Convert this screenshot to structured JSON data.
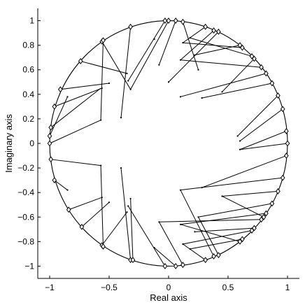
{
  "chart_data": {
    "type": "scatter",
    "title": "",
    "xlabel": "Real axis",
    "ylabel": "Imaginary axis",
    "xlim": [
      -1.1,
      1.1
    ],
    "ylim": [
      -1.1,
      1.1
    ],
    "xticks": [
      -1,
      -0.5,
      0,
      0.5,
      1
    ],
    "yticks": [
      -1,
      -0.8,
      -0.6,
      -0.4,
      -0.2,
      0,
      0.2,
      0.4,
      0.6,
      0.8,
      1
    ],
    "xtick_labels": [
      "−1",
      "−0.5",
      "0",
      "0.5",
      "1"
    ],
    "ytick_labels": [
      "−1",
      "−0.8",
      "−0.6",
      "−0.4",
      "−0.2",
      "0",
      "0.2",
      "0.4",
      "0.6",
      "0.8",
      "1"
    ],
    "grid": false,
    "unit_circle": true,
    "series": [
      {
        "marker": "dot",
        "points": [
          [
            -0.57,
            0.19
          ],
          [
            -0.4,
            0.21
          ],
          [
            -0.57,
            -0.18
          ],
          [
            -0.4,
            -0.2
          ],
          [
            -0.85,
            0.38
          ],
          [
            -0.56,
            0.45
          ],
          [
            -0.5,
            0.49
          ],
          [
            -0.35,
            0.57
          ],
          [
            -0.32,
            0.44
          ],
          [
            -0.34,
            0.51
          ],
          [
            0.0,
            0.5
          ],
          [
            0.1,
            0.38
          ],
          [
            0.28,
            0.37
          ],
          [
            0.1,
            0.68
          ],
          [
            -0.08,
            0.64
          ],
          [
            0.25,
            0.6
          ],
          [
            0.45,
            0.42
          ],
          [
            0.58,
            0.06
          ],
          [
            0.6,
            0.02
          ],
          [
            0.6,
            -0.05
          ],
          [
            0.1,
            -0.38
          ],
          [
            0.28,
            -0.36
          ],
          [
            0.45,
            -0.43
          ],
          [
            0.1,
            -0.66
          ],
          [
            -0.08,
            -0.64
          ],
          [
            0.25,
            -0.6
          ],
          [
            -0.85,
            -0.38
          ],
          [
            -0.56,
            -0.44
          ],
          [
            -0.5,
            -0.48
          ],
          [
            -0.35,
            -0.56
          ],
          [
            -0.32,
            -0.45
          ],
          [
            -0.34,
            -0.51
          ],
          [
            0.12,
            0.82
          ],
          [
            0.22,
            0.72
          ],
          [
            0.18,
            0.86
          ],
          [
            0.12,
            -0.82
          ],
          [
            0.22,
            -0.72
          ],
          [
            0.18,
            -0.86
          ],
          [
            -0.12,
            0.85
          ],
          [
            -0.12,
            -0.85
          ]
        ]
      },
      {
        "marker": "diamond",
        "points": [
          [
            -1.0,
            0.0
          ],
          [
            -1.0,
            0.06
          ],
          [
            -0.99,
            -0.13
          ],
          [
            -0.99,
            0.13
          ],
          [
            -0.96,
            0.3
          ],
          [
            -0.96,
            -0.3
          ],
          [
            -0.91,
            0.44
          ],
          [
            -0.74,
            0.67
          ],
          [
            -0.73,
            -0.68
          ],
          [
            -0.56,
            0.83
          ],
          [
            -0.55,
            0.84
          ],
          [
            -0.56,
            -0.83
          ],
          [
            -0.55,
            -0.84
          ],
          [
            -0.32,
            0.95
          ],
          [
            -0.32,
            -0.95
          ],
          [
            -0.3,
            -0.95
          ],
          [
            -0.03,
            1.0
          ],
          [
            0.0,
            1.0
          ],
          [
            0.06,
            1.0
          ],
          [
            0.12,
            0.99
          ],
          [
            -0.03,
            -1.0
          ],
          [
            0.06,
            -1.0
          ],
          [
            0.12,
            -0.99
          ],
          [
            0.38,
            0.92
          ],
          [
            0.42,
            0.91
          ],
          [
            0.38,
            -0.92
          ],
          [
            0.42,
            -0.91
          ],
          [
            0.6,
            0.8
          ],
          [
            0.62,
            0.78
          ],
          [
            0.6,
            -0.8
          ],
          [
            0.62,
            -0.78
          ],
          [
            0.7,
            0.71
          ],
          [
            0.72,
            0.69
          ],
          [
            0.78,
            0.62
          ],
          [
            0.82,
            0.57
          ],
          [
            0.7,
            -0.71
          ],
          [
            0.72,
            -0.69
          ],
          [
            0.78,
            -0.62
          ],
          [
            0.82,
            -0.57
          ],
          [
            0.87,
            0.49
          ],
          [
            0.92,
            0.39
          ],
          [
            0.87,
            -0.49
          ],
          [
            0.92,
            -0.39
          ],
          [
            0.96,
            0.28
          ],
          [
            0.96,
            -0.28
          ],
          [
            0.99,
            0.1
          ],
          [
            0.99,
            -0.1
          ],
          [
            1.0,
            0.0
          ],
          [
            -0.84,
            -0.54
          ],
          [
            0.31,
            -0.95
          ],
          [
            0.31,
            0.95
          ],
          [
            0.8,
            -0.6
          ]
        ]
      }
    ],
    "segments": [
      [
        [
          -1.0,
          0.0
        ],
        [
          -0.57,
          0.19
        ]
      ],
      [
        [
          -0.99,
          0.13
        ],
        [
          -0.57,
          0.45
        ]
      ],
      [
        [
          -0.91,
          0.44
        ],
        [
          -0.5,
          0.49
        ]
      ],
      [
        [
          -0.74,
          0.67
        ],
        [
          -0.35,
          0.57
        ]
      ],
      [
        [
          -0.56,
          0.83
        ],
        [
          -0.32,
          0.44
        ]
      ],
      [
        [
          -0.32,
          0.95
        ],
        [
          -0.4,
          0.21
        ]
      ],
      [
        [
          -0.55,
          0.84
        ],
        [
          -0.57,
          0.19
        ]
      ],
      [
        [
          -0.96,
          0.3
        ],
        [
          -0.56,
          0.45
        ]
      ],
      [
        [
          -0.03,
          1.0
        ],
        [
          -0.34,
          0.51
        ]
      ],
      [
        [
          0.0,
          1.0
        ],
        [
          -0.32,
          0.44
        ]
      ],
      [
        [
          0.12,
          0.99
        ],
        [
          0.25,
          0.6
        ]
      ],
      [
        [
          0.06,
          1.0
        ],
        [
          -0.08,
          0.64
        ]
      ],
      [
        [
          0.38,
          0.92
        ],
        [
          0.1,
          0.68
        ]
      ],
      [
        [
          0.42,
          0.91
        ],
        [
          0.0,
          0.5
        ]
      ],
      [
        [
          0.6,
          0.8
        ],
        [
          0.22,
          0.72
        ]
      ],
      [
        [
          0.62,
          0.78
        ],
        [
          0.12,
          0.82
        ]
      ],
      [
        [
          0.7,
          0.71
        ],
        [
          0.18,
          0.86
        ]
      ],
      [
        [
          0.72,
          0.69
        ],
        [
          0.45,
          0.42
        ]
      ],
      [
        [
          0.78,
          0.62
        ],
        [
          0.1,
          0.68
        ]
      ],
      [
        [
          0.82,
          0.57
        ],
        [
          0.1,
          0.38
        ]
      ],
      [
        [
          0.87,
          0.49
        ],
        [
          0.28,
          0.37
        ]
      ],
      [
        [
          0.92,
          0.39
        ],
        [
          0.58,
          0.06
        ]
      ],
      [
        [
          0.96,
          0.28
        ],
        [
          0.6,
          0.02
        ]
      ],
      [
        [
          0.99,
          0.1
        ],
        [
          0.6,
          -0.05
        ]
      ],
      [
        [
          1.0,
          0.0
        ],
        [
          0.6,
          -0.05
        ]
      ],
      [
        [
          0.99,
          -0.1
        ],
        [
          0.28,
          -0.36
        ]
      ],
      [
        [
          0.96,
          -0.28
        ],
        [
          0.1,
          -0.38
        ]
      ],
      [
        [
          0.92,
          -0.39
        ],
        [
          0.45,
          -0.43
        ]
      ],
      [
        [
          0.87,
          -0.49
        ],
        [
          0.25,
          -0.6
        ]
      ],
      [
        [
          0.82,
          -0.57
        ],
        [
          0.1,
          -0.66
        ]
      ],
      [
        [
          0.78,
          -0.62
        ],
        [
          -0.08,
          -0.64
        ]
      ],
      [
        [
          0.72,
          -0.69
        ],
        [
          0.22,
          -0.72
        ]
      ],
      [
        [
          0.7,
          -0.71
        ],
        [
          0.12,
          -0.82
        ]
      ],
      [
        [
          0.62,
          -0.78
        ],
        [
          0.18,
          -0.86
        ]
      ],
      [
        [
          0.6,
          -0.8
        ],
        [
          0.1,
          -0.66
        ]
      ],
      [
        [
          0.42,
          -0.91
        ],
        [
          0.25,
          -0.6
        ]
      ],
      [
        [
          0.38,
          -0.92
        ],
        [
          0.1,
          -0.38
        ]
      ],
      [
        [
          0.12,
          -0.99
        ],
        [
          -0.08,
          -0.64
        ]
      ],
      [
        [
          0.06,
          -1.0
        ],
        [
          -0.12,
          -0.85
        ]
      ],
      [
        [
          -0.03,
          -1.0
        ],
        [
          -0.34,
          -0.51
        ]
      ],
      [
        [
          -0.3,
          -0.95
        ],
        [
          -0.32,
          -0.45
        ]
      ],
      [
        [
          -0.32,
          -0.95
        ],
        [
          -0.4,
          -0.2
        ]
      ],
      [
        [
          -0.55,
          -0.84
        ],
        [
          -0.57,
          -0.18
        ]
      ],
      [
        [
          -0.56,
          -0.83
        ],
        [
          -0.35,
          -0.56
        ]
      ],
      [
        [
          -0.73,
          -0.68
        ],
        [
          -0.5,
          -0.48
        ]
      ],
      [
        [
          -0.84,
          -0.54
        ],
        [
          -0.56,
          -0.44
        ]
      ],
      [
        [
          -0.96,
          -0.3
        ],
        [
          -0.85,
          -0.38
        ]
      ],
      [
        [
          -0.99,
          -0.13
        ],
        [
          -0.57,
          -0.18
        ]
      ],
      [
        [
          -1.0,
          0.06
        ],
        [
          -0.85,
          0.38
        ]
      ],
      [
        [
          0.31,
          0.95
        ],
        [
          0.12,
          0.82
        ]
      ],
      [
        [
          0.31,
          -0.95
        ],
        [
          0.12,
          -0.82
        ]
      ],
      [
        [
          0.8,
          -0.6
        ],
        [
          0.45,
          -0.43
        ]
      ]
    ]
  }
}
